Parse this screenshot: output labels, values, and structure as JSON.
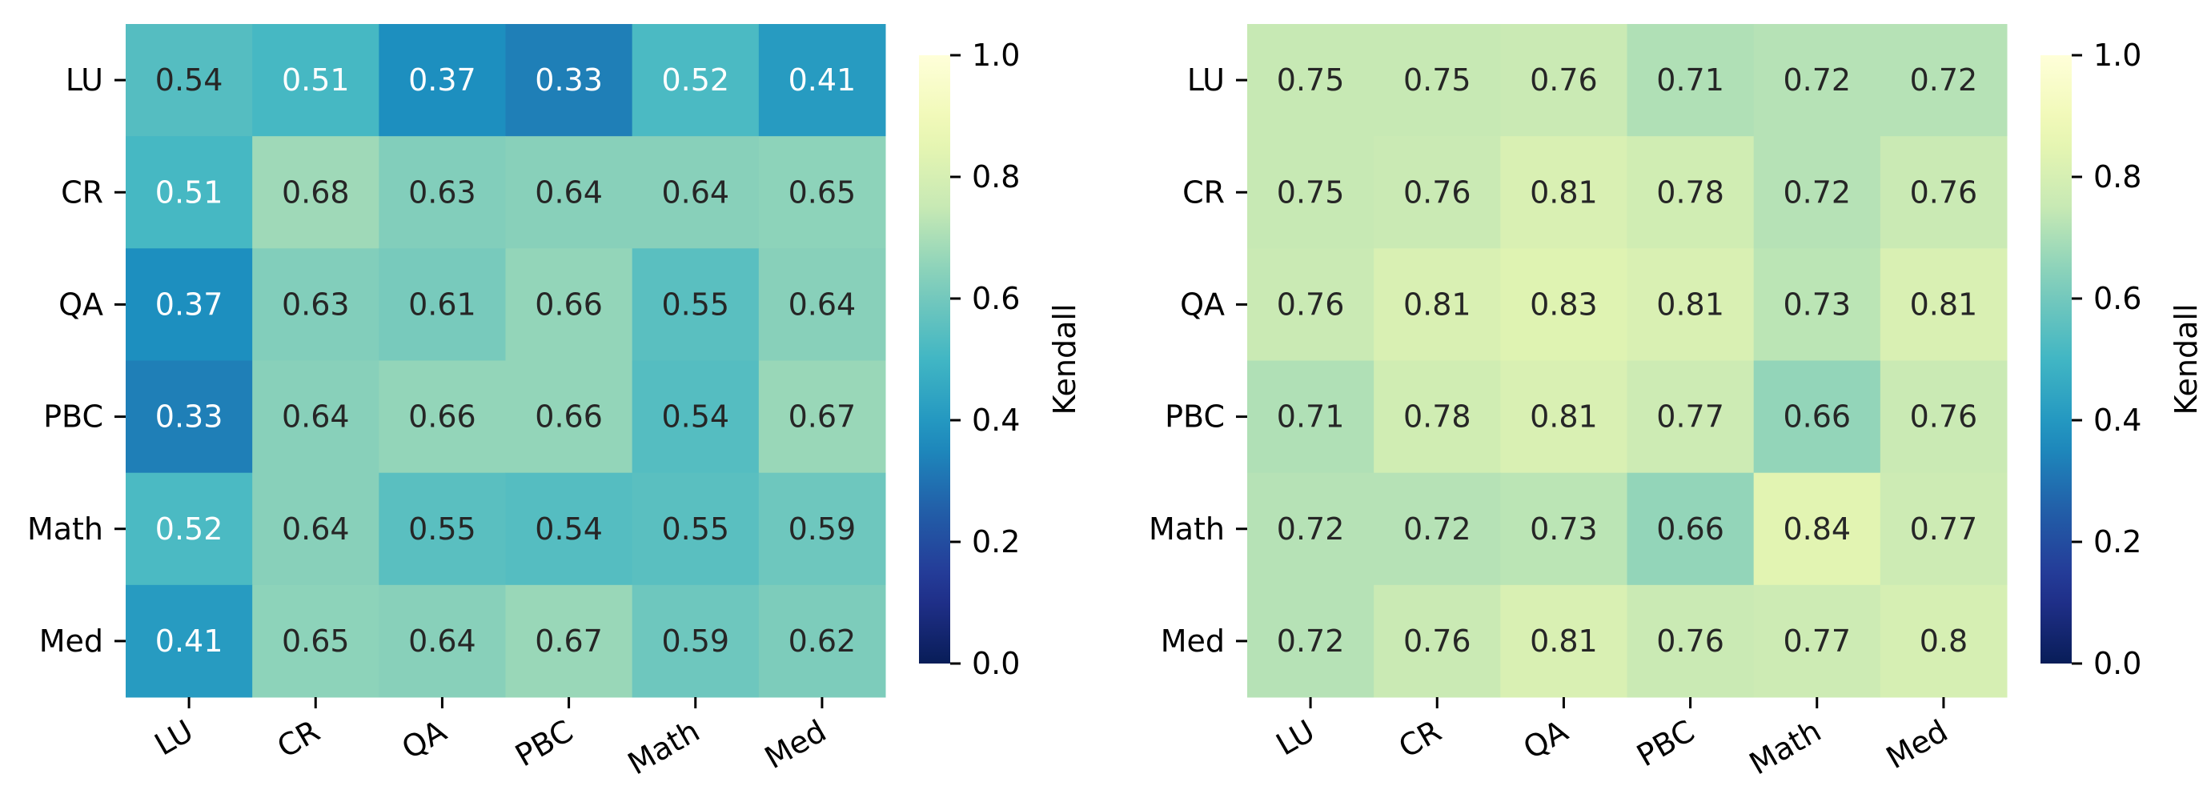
{
  "chart_data": [
    {
      "type": "heatmap",
      "rows": [
        "LU",
        "CR",
        "QA",
        "PBC",
        "Math",
        "Med"
      ],
      "columns": [
        "LU",
        "CR",
        "QA",
        "PBC",
        "Math",
        "Med"
      ],
      "values": [
        [
          "0.54",
          "0.51",
          "0.37",
          "0.33",
          "0.52",
          "0.41"
        ],
        [
          "0.51",
          "0.68",
          "0.63",
          "0.64",
          "0.64",
          "0.65"
        ],
        [
          "0.37",
          "0.63",
          "0.61",
          "0.66",
          "0.55",
          "0.64"
        ],
        [
          "0.33",
          "0.64",
          "0.66",
          "0.66",
          "0.54",
          "0.67"
        ],
        [
          "0.52",
          "0.64",
          "0.55",
          "0.54",
          "0.55",
          "0.59"
        ],
        [
          "0.41",
          "0.65",
          "0.64",
          "0.67",
          "0.59",
          "0.62"
        ]
      ],
      "colormap": "YlGnBu",
      "vmin": 0,
      "vmax": 1,
      "colorbar_label": "Kendall",
      "colorbar_ticks": [
        "0.0",
        "0.2",
        "0.4",
        "0.6",
        "0.8",
        "1.0"
      ]
    },
    {
      "type": "heatmap",
      "rows": [
        "LU",
        "CR",
        "QA",
        "PBC",
        "Math",
        "Med"
      ],
      "columns": [
        "LU",
        "CR",
        "QA",
        "PBC",
        "Math",
        "Med"
      ],
      "values": [
        [
          "0.75",
          "0.75",
          "0.76",
          "0.71",
          "0.72",
          "0.72"
        ],
        [
          "0.75",
          "0.76",
          "0.81",
          "0.78",
          "0.72",
          "0.76"
        ],
        [
          "0.76",
          "0.81",
          "0.83",
          "0.81",
          "0.73",
          "0.81"
        ],
        [
          "0.71",
          "0.78",
          "0.81",
          "0.77",
          "0.66",
          "0.76"
        ],
        [
          "0.72",
          "0.72",
          "0.73",
          "0.66",
          "0.84",
          "0.77"
        ],
        [
          "0.72",
          "0.76",
          "0.81",
          "0.76",
          "0.77",
          "0.8"
        ]
      ],
      "colormap": "YlGnBu",
      "vmin": 0,
      "vmax": 1,
      "colorbar_label": "Kendall",
      "colorbar_ticks": [
        "0.0",
        "0.2",
        "0.4",
        "0.6",
        "0.8",
        "1.0"
      ]
    }
  ],
  "colors": {
    "colormap_stops": [
      "#ffffd9",
      "#edf8b1",
      "#c7e9b4",
      "#7fcdbb",
      "#41b6c4",
      "#1d91c0",
      "#225ea8",
      "#253494",
      "#081d58"
    ],
    "annot_dark": "#262626",
    "annot_light": "#ffffff"
  }
}
